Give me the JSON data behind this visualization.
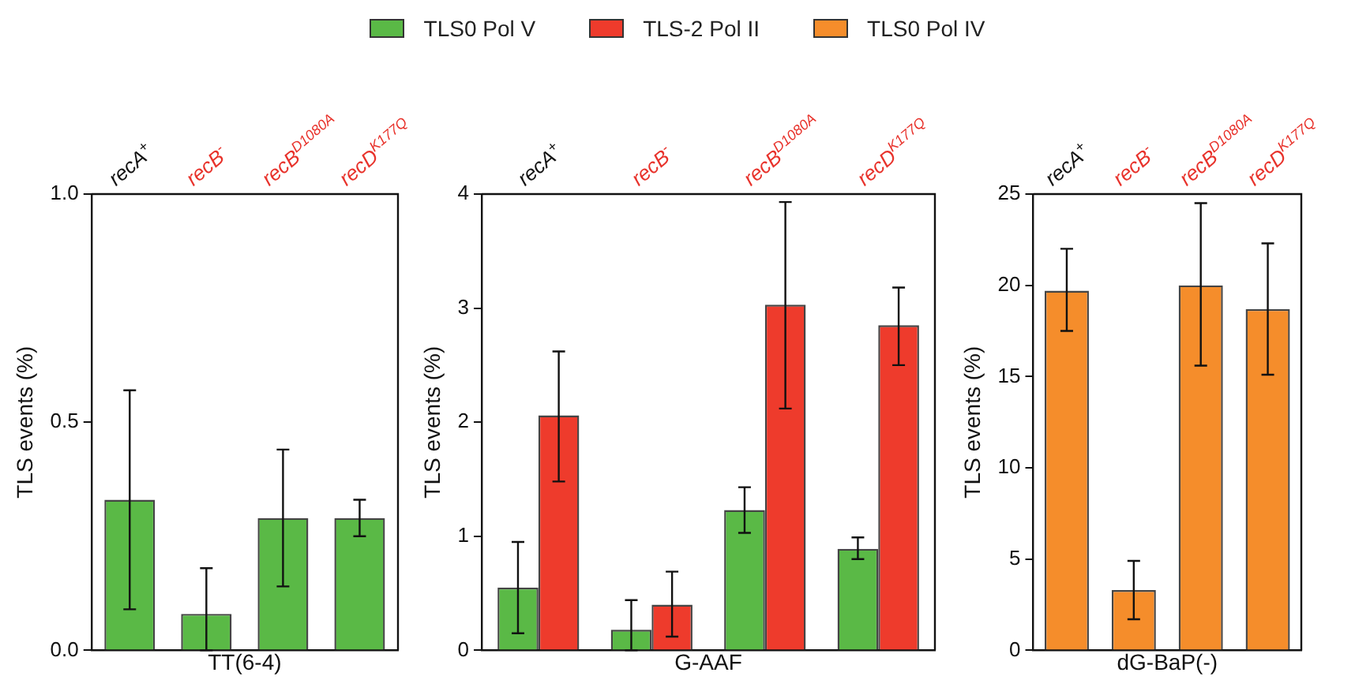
{
  "chart_data": [
    {
      "type": "bar",
      "xlabel": "TT(6-4)",
      "ylabel": "TLS events (%)",
      "categories": [
        "recA$^{+}$",
        "recB$^{-}$",
        "recB$^{D1080A}$",
        "recD$^{K177Q}$"
      ],
      "series": [
        {
          "name": "TLS0 Pol V",
          "color": "#5ab946",
          "values": [
            0.33,
            0.08,
            0.29,
            0.29
          ],
          "errors": [
            [
              0.09,
              0.57
            ],
            [
              0.0,
              0.18
            ],
            [
              0.14,
              0.44
            ],
            [
              0.25,
              0.33
            ]
          ]
        }
      ],
      "ylim": [
        0,
        1
      ],
      "yticks": [
        {
          "value": 0,
          "label": "0.0"
        },
        {
          "value": 0.5,
          "label": "0.5"
        },
        {
          "value": 1,
          "label": "1.0"
        }
      ],
      "grid": false,
      "legend": "top"
    },
    {
      "type": "bar",
      "xlabel": "G-AAF",
      "ylabel": "TLS events (%)",
      "categories": [
        "recA$^{+}$",
        "recB$^{-}$",
        "recB$^{D1080A}$",
        "recD$^{K177Q}$"
      ],
      "series": [
        {
          "name": "TLS0 Pol V",
          "color": "#5ab946",
          "values": [
            0.55,
            0.18,
            1.23,
            0.89
          ],
          "errors": [
            [
              0.15,
              0.95
            ],
            [
              0.0,
              0.44
            ],
            [
              1.03,
              1.43
            ],
            [
              0.8,
              0.99
            ]
          ]
        },
        {
          "name": "TLS-2 Pol II",
          "color": "#ee3b2c",
          "values": [
            2.06,
            0.4,
            3.03,
            2.85
          ],
          "errors": [
            [
              1.48,
              2.62
            ],
            [
              0.12,
              0.69
            ],
            [
              2.12,
              3.93
            ],
            [
              2.5,
              3.18
            ]
          ]
        }
      ],
      "ylim": [
        0,
        4
      ],
      "yticks": [
        0,
        1,
        2,
        3,
        4
      ],
      "grid": false,
      "legend": "top"
    },
    {
      "type": "bar",
      "xlabel": "dG-BaP(-)",
      "ylabel": "TLS events (%)",
      "categories": [
        "recA$^{+}$",
        "recB$^{-}$",
        "recB$^{D1080A}$",
        "recD$^{K177Q}$"
      ],
      "series": [
        {
          "name": "TLS0 Pol IV",
          "color": "#f58d2b",
          "values": [
            19.7,
            3.3,
            20.0,
            18.7
          ],
          "errors": [
            [
              17.5,
              22.0
            ],
            [
              1.7,
              4.9
            ],
            [
              15.6,
              24.5
            ],
            [
              15.1,
              22.3
            ]
          ]
        }
      ],
      "ylim": [
        0,
        25
      ],
      "yticks": [
        0,
        5,
        10,
        15,
        20,
        25
      ],
      "grid": false,
      "legend": "top"
    }
  ]
}
